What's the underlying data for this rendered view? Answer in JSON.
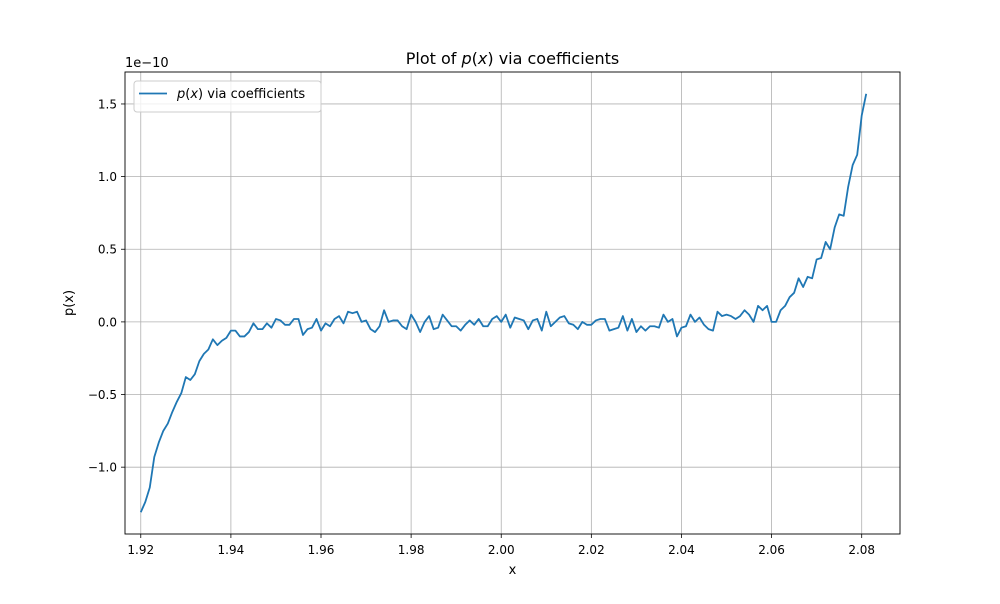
{
  "chart_data": {
    "type": "line",
    "title_parts": [
      {
        "text": "Plot of ",
        "italic": false
      },
      {
        "text": "p",
        "italic": true
      },
      {
        "text": "(",
        "italic": false
      },
      {
        "text": "x",
        "italic": true
      },
      {
        "text": ") via coefficients",
        "italic": false
      }
    ],
    "xlabel": "x",
    "ylabel": "p(x)",
    "y_offset_label": "1e−10",
    "xlim": [
      1.9165,
      2.0885
    ],
    "ylim": [
      -1.46,
      1.72
    ],
    "x_ticks": [
      1.92,
      1.94,
      1.96,
      1.98,
      2.0,
      2.02,
      2.04,
      2.06,
      2.08
    ],
    "x_tick_labels": [
      "1.92",
      "1.94",
      "1.96",
      "1.98",
      "2.00",
      "2.02",
      "2.04",
      "2.06",
      "2.08"
    ],
    "y_ticks": [
      -1.0,
      -0.5,
      0.0,
      0.5,
      1.0,
      1.5
    ],
    "y_tick_labels": [
      "−1.0",
      "−0.5",
      "0.0",
      "0.5",
      "1.0",
      "1.5"
    ],
    "grid": true,
    "legend_position": "upper-left",
    "line_color": "#1f77b4",
    "series": [
      {
        "legend_parts": [
          {
            "text": "p",
            "italic": true
          },
          {
            "text": "(",
            "italic": false
          },
          {
            "text": "x",
            "italic": true
          },
          {
            "text": ") via coefficients",
            "italic": false
          }
        ],
        "x": [
          1.92,
          1.921,
          1.922,
          1.923,
          1.924,
          1.925,
          1.926,
          1.927,
          1.928,
          1.929,
          1.93,
          1.931,
          1.932,
          1.933,
          1.934,
          1.935,
          1.936,
          1.937,
          1.938,
          1.939,
          1.94,
          1.941,
          1.942,
          1.943,
          1.944,
          1.945,
          1.946,
          1.947,
          1.948,
          1.949,
          1.95,
          1.951,
          1.952,
          1.953,
          1.954,
          1.955,
          1.956,
          1.957,
          1.958,
          1.959,
          1.96,
          1.961,
          1.962,
          1.963,
          1.964,
          1.965,
          1.966,
          1.967,
          1.968,
          1.969,
          1.97,
          1.971,
          1.972,
          1.973,
          1.974,
          1.975,
          1.976,
          1.977,
          1.978,
          1.979,
          1.98,
          1.981,
          1.982,
          1.983,
          1.984,
          1.985,
          1.986,
          1.987,
          1.988,
          1.989,
          1.99,
          1.991,
          1.992,
          1.993,
          1.994,
          1.995,
          1.996,
          1.997,
          1.998,
          1.999,
          2.0,
          2.001,
          2.002,
          2.003,
          2.004,
          2.005,
          2.006,
          2.007,
          2.008,
          2.009,
          2.01,
          2.011,
          2.012,
          2.013,
          2.014,
          2.015,
          2.016,
          2.017,
          2.018,
          2.019,
          2.02,
          2.021,
          2.022,
          2.023,
          2.024,
          2.025,
          2.026,
          2.027,
          2.028,
          2.029,
          2.03,
          2.031,
          2.032,
          2.033,
          2.034,
          2.035,
          2.036,
          2.037,
          2.038,
          2.039,
          2.04,
          2.041,
          2.042,
          2.043,
          2.044,
          2.045,
          2.046,
          2.047,
          2.048,
          2.049,
          2.05,
          2.051,
          2.052,
          2.053,
          2.054,
          2.055,
          2.056,
          2.057,
          2.058,
          2.059,
          2.06,
          2.061,
          2.062,
          2.063,
          2.064,
          2.065,
          2.066,
          2.067,
          2.068,
          2.069,
          2.07,
          2.071,
          2.072,
          2.073,
          2.074,
          2.075,
          2.076,
          2.077,
          2.078,
          2.079,
          2.08,
          2.081
        ],
        "y": [
          -1.31,
          -1.24,
          -1.14,
          -0.93,
          -0.83,
          -0.75,
          -0.7,
          -0.62,
          -0.55,
          -0.49,
          -0.38,
          -0.4,
          -0.36,
          -0.27,
          -0.22,
          -0.19,
          -0.12,
          -0.16,
          -0.13,
          -0.11,
          -0.06,
          -0.06,
          -0.1,
          -0.1,
          -0.07,
          -0.01,
          -0.05,
          -0.05,
          -0.01,
          -0.04,
          0.02,
          0.01,
          -0.02,
          -0.02,
          0.02,
          0.02,
          -0.09,
          -0.05,
          -0.04,
          0.02,
          -0.06,
          -0.01,
          -0.03,
          0.02,
          0.04,
          -0.01,
          0.07,
          0.06,
          0.07,
          0.0,
          0.01,
          -0.05,
          -0.07,
          -0.03,
          0.08,
          0.0,
          0.01,
          0.01,
          -0.03,
          -0.05,
          0.05,
          0.0,
          -0.07,
          0.0,
          0.04,
          -0.05,
          -0.04,
          0.05,
          0.01,
          -0.03,
          -0.03,
          -0.06,
          -0.02,
          0.01,
          -0.02,
          0.02,
          -0.03,
          -0.03,
          0.02,
          0.04,
          0.0,
          0.05,
          -0.04,
          0.03,
          0.02,
          0.01,
          -0.05,
          0.01,
          0.02,
          -0.06,
          0.07,
          -0.03,
          0.0,
          0.03,
          0.04,
          -0.01,
          -0.02,
          -0.05,
          0.0,
          -0.02,
          -0.02,
          0.01,
          0.02,
          0.02,
          -0.06,
          -0.05,
          -0.04,
          0.04,
          -0.06,
          0.02,
          -0.07,
          -0.03,
          -0.06,
          -0.03,
          -0.03,
          -0.04,
          0.05,
          0.0,
          0.02,
          -0.1,
          -0.04,
          -0.03,
          0.05,
          0.0,
          0.03,
          -0.02,
          -0.05,
          -0.06,
          0.07,
          0.04,
          0.05,
          0.04,
          0.02,
          0.04,
          0.08,
          0.05,
          0.0,
          0.11,
          0.08,
          0.11,
          0.0,
          0.0,
          0.08,
          0.11,
          0.17,
          0.2,
          0.3,
          0.24,
          0.31,
          0.3,
          0.43,
          0.44,
          0.55,
          0.5,
          0.65,
          0.74,
          0.73,
          0.93,
          1.08,
          1.15,
          1.42,
          1.57
        ]
      }
    ]
  }
}
